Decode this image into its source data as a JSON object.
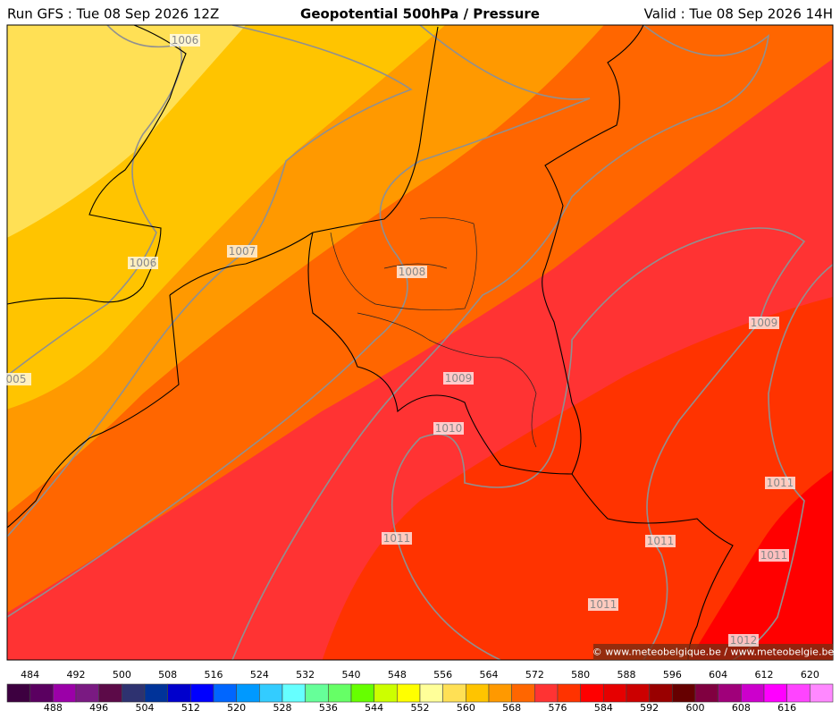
{
  "header": {
    "run": "Run GFS : Tue 08 Sep 2026 12Z",
    "title": "Geopotential 500hPa / Pressure",
    "valid": "Valid : Tue 08 Sep 2026 14H"
  },
  "isobar_labels": [
    "1006",
    "1006",
    "1007",
    "1008",
    "1009",
    "1010",
    "1009",
    "005",
    "1011",
    "1011",
    "1011",
    "1011",
    "1011",
    "1012"
  ],
  "copyright": "© www.meteobelgique.be / www.meteobelgie.be",
  "legend": {
    "levels": [
      484,
      488,
      492,
      496,
      500,
      504,
      508,
      512,
      516,
      520,
      524,
      528,
      532,
      536,
      540,
      544,
      548,
      552,
      556,
      560,
      564,
      568,
      572,
      576,
      580,
      584,
      588,
      592,
      596,
      600,
      604,
      608,
      612,
      616,
      620
    ],
    "colors": [
      "#3d0040",
      "#5a0060",
      "#9b00a8",
      "#7a1a82",
      "#5c0a48",
      "#2e3270",
      "#003399",
      "#0000cc",
      "#0000ff",
      "#0066ff",
      "#0099ff",
      "#33ccff",
      "#66ffff",
      "#66ff99",
      "#66ff66",
      "#66ff00",
      "#ccff00",
      "#ffff00",
      "#ffff99",
      "#ffe055",
      "#ffc400",
      "#ff9900",
      "#ff6600",
      "#ff3333",
      "#ff3300",
      "#ff0000",
      "#e60000",
      "#cc0000",
      "#990000",
      "#660000",
      "#800040",
      "#a0007a",
      "#cc00cc",
      "#ff00ff",
      "#ff44ff",
      "#ff88ff"
    ]
  }
}
